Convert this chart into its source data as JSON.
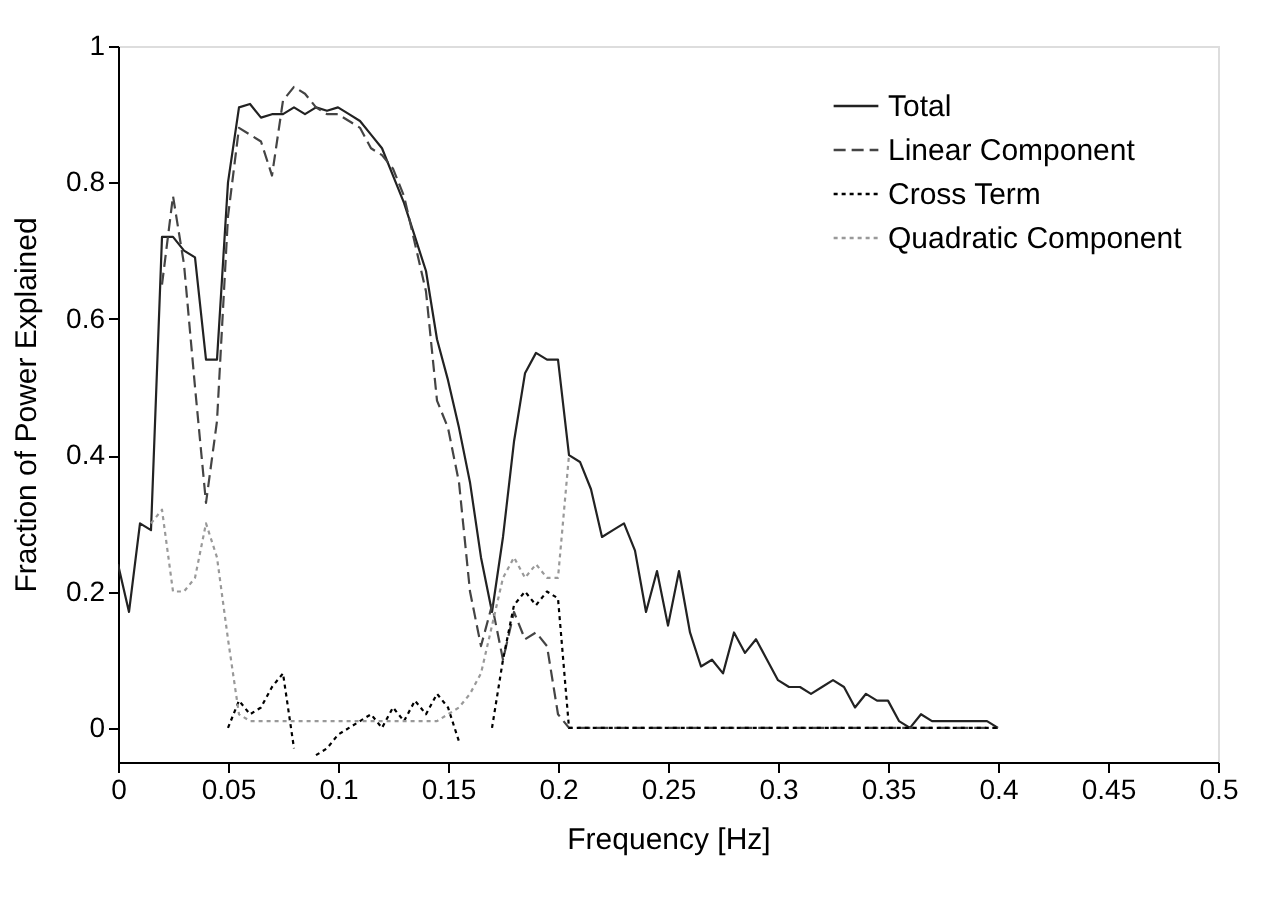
{
  "chart_data": {
    "type": "line",
    "xlabel": "Frequency [Hz]",
    "ylabel": "Fraction of Power Explained",
    "xlim": [
      0,
      0.5
    ],
    "xticks": [
      0,
      0.05,
      0.1,
      0.15,
      0.2,
      0.25,
      0.3,
      0.35,
      0.4,
      0.45,
      0.5
    ],
    "ylim": [
      -0.05,
      1
    ],
    "yticks": [
      0,
      0.2,
      0.4,
      0.6,
      0.8,
      1
    ],
    "grid": false,
    "legend": "top right",
    "marker": "none",
    "series": [
      {
        "name": "Total",
        "color": "#222222",
        "line_style": "solid",
        "x": [
          0,
          0.005,
          0.01,
          0.015,
          0.02,
          0.025,
          0.03,
          0.035,
          0.04,
          0.045,
          0.05,
          0.055,
          0.06,
          0.065,
          0.07,
          0.075,
          0.08,
          0.085,
          0.09,
          0.095,
          0.1,
          0.105,
          0.11,
          0.115,
          0.12,
          0.125,
          0.13,
          0.135,
          0.14,
          0.145,
          0.15,
          0.155,
          0.16,
          0.165,
          0.17,
          0.175,
          0.18,
          0.185,
          0.19,
          0.195,
          0.2,
          0.205,
          0.21,
          0.215,
          0.22,
          0.225,
          0.23,
          0.235,
          0.24,
          0.245,
          0.25,
          0.255,
          0.26,
          0.265,
          0.27,
          0.275,
          0.28,
          0.285,
          0.29,
          0.295,
          0.3,
          0.305,
          0.31,
          0.315,
          0.32,
          0.325,
          0.33,
          0.335,
          0.34,
          0.345,
          0.35,
          0.355,
          0.36,
          0.365,
          0.37,
          0.375,
          0.38,
          0.385,
          0.39,
          0.395,
          0.4
        ],
        "values": [
          0.24,
          0.17,
          0.3,
          0.29,
          0.72,
          0.72,
          0.7,
          0.69,
          0.54,
          0.54,
          0.8,
          0.91,
          0.915,
          0.895,
          0.9,
          0.9,
          0.91,
          0.9,
          0.91,
          0.905,
          0.91,
          0.9,
          0.89,
          0.87,
          0.85,
          0.81,
          0.77,
          0.72,
          0.67,
          0.57,
          0.51,
          0.44,
          0.36,
          0.25,
          0.17,
          0.28,
          0.42,
          0.52,
          0.55,
          0.54,
          0.54,
          0.4,
          0.39,
          0.35,
          0.28,
          0.29,
          0.3,
          0.26,
          0.17,
          0.23,
          0.15,
          0.23,
          0.14,
          0.09,
          0.1,
          0.08,
          0.14,
          0.11,
          0.13,
          0.1,
          0.07,
          0.06,
          0.06,
          0.05,
          0.06,
          0.07,
          0.06,
          0.03,
          0.05,
          0.04,
          0.04,
          0.01,
          0,
          0.02,
          0.01,
          0.01,
          0.01,
          0.01,
          0.01,
          0.01,
          0
        ]
      },
      {
        "name": "Linear Component",
        "color": "#444444",
        "line_style": "dashed",
        "x": [
          0.02,
          0.025,
          0.03,
          0.035,
          0.04,
          0.045,
          0.05,
          0.055,
          0.06,
          0.065,
          0.07,
          0.075,
          0.08,
          0.085,
          0.09,
          0.095,
          0.1,
          0.105,
          0.11,
          0.115,
          0.12,
          0.125,
          0.13,
          0.135,
          0.14,
          0.145,
          0.15,
          0.155,
          0.16,
          0.165,
          0.17,
          0.175,
          0.18,
          0.185,
          0.19,
          0.195,
          0.2,
          0.205,
          0.4
        ],
        "values": [
          0.65,
          0.78,
          0.68,
          0.5,
          0.33,
          0.45,
          0.75,
          0.88,
          0.87,
          0.86,
          0.81,
          0.92,
          0.94,
          0.93,
          0.91,
          0.9,
          0.9,
          0.89,
          0.88,
          0.85,
          0.84,
          0.82,
          0.78,
          0.71,
          0.64,
          0.48,
          0.44,
          0.36,
          0.2,
          0.12,
          0.18,
          0.1,
          0.17,
          0.13,
          0.14,
          0.12,
          0.02,
          0,
          0
        ]
      },
      {
        "name": "Cross Term",
        "color": "#000000",
        "line_style": "dotted",
        "x": [
          0.05,
          0.055,
          0.06,
          0.065,
          0.07,
          0.075,
          0.08,
          0.085,
          0.09,
          0.095,
          0.1,
          0.105,
          0.11,
          0.115,
          0.12,
          0.125,
          0.13,
          0.135,
          0.14,
          0.145,
          0.15,
          0.155,
          0.16,
          0.165,
          0.17,
          0.175,
          0.18,
          0.185,
          0.19,
          0.195,
          0.2,
          0.205,
          0.4
        ],
        "values": [
          0,
          0.04,
          0.02,
          0.03,
          0.06,
          0.08,
          -0.03,
          null,
          -0.04,
          -0.03,
          -0.01,
          0,
          0.01,
          0.02,
          0,
          0.03,
          0.01,
          0.04,
          0.02,
          0.05,
          0.03,
          -0.02,
          null,
          null,
          0,
          0.1,
          0.18,
          0.2,
          0.18,
          0.2,
          0.19,
          0,
          0
        ]
      },
      {
        "name": "Quadratic Component",
        "color": "#999999",
        "line_style": "dotted",
        "x": [
          0.015,
          0.02,
          0.025,
          0.03,
          0.035,
          0.04,
          0.045,
          0.05,
          0.055,
          0.06,
          0.1,
          0.145,
          0.15,
          0.155,
          0.16,
          0.165,
          0.17,
          0.175,
          0.18,
          0.185,
          0.19,
          0.195,
          0.2,
          0.205
        ],
        "values": [
          0.3,
          0.32,
          0.2,
          0.2,
          0.22,
          0.3,
          0.25,
          0.13,
          0.02,
          0.01,
          0.01,
          0.01,
          0.02,
          0.03,
          0.05,
          0.08,
          0.15,
          0.22,
          0.25,
          0.22,
          0.24,
          0.22,
          0.22,
          0.4
        ]
      }
    ]
  }
}
